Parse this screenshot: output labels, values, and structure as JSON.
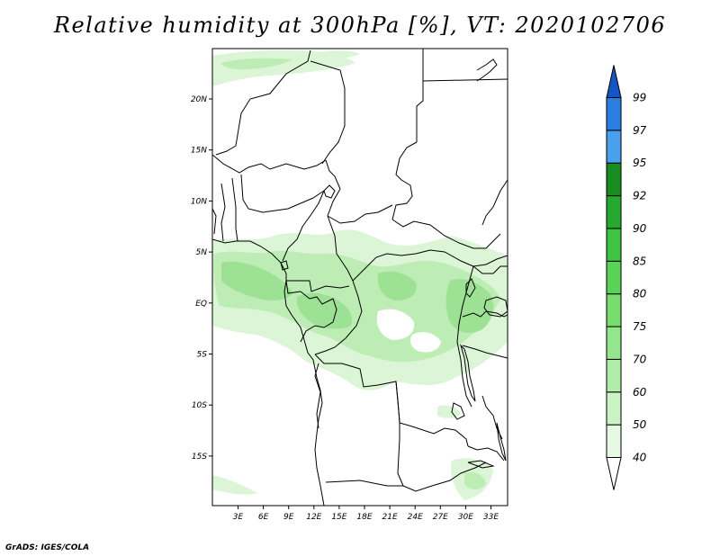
{
  "title": "Relative humidity at 300hPa [%], VT: 2020102706",
  "credit": "GrADS: IGES/COLA",
  "map": {
    "lat_labels": [
      "20N",
      "15N",
      "10N",
      "5N",
      "EQ",
      "5S",
      "10S",
      "15S"
    ],
    "lon_labels": [
      "3E",
      "6E",
      "9E",
      "12E",
      "15E",
      "18E",
      "21E",
      "24E",
      "27E",
      "30E",
      "33E"
    ]
  },
  "legend": {
    "labels": [
      "40",
      "50",
      "60",
      "70",
      "75",
      "80",
      "85",
      "90",
      "92",
      "95",
      "97",
      "99"
    ],
    "colors": [
      "#ffffff",
      "#e6f9e3",
      "#cbf4c5",
      "#b0eda8",
      "#94e68c",
      "#76dd6e",
      "#58d355",
      "#3fc342",
      "#26a92f",
      "#168d1e",
      "#4aa0ec",
      "#2a7fe0",
      "#1556c4"
    ]
  },
  "colors": {
    "humidity_light": "#dcf5d7",
    "humidity_mid": "#bdedb5",
    "humidity_dark": "#9de294",
    "borders": "#000000"
  }
}
